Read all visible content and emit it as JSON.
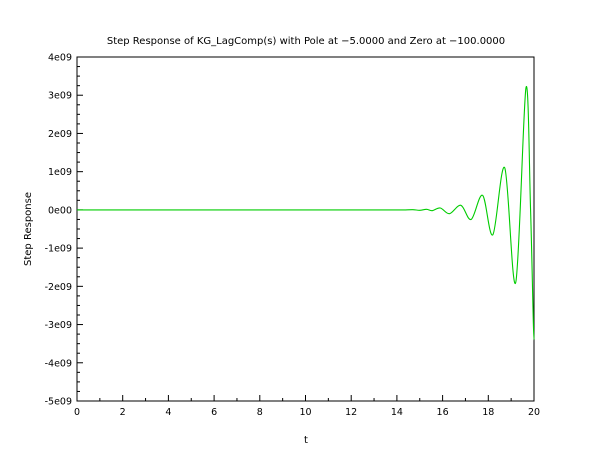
{
  "chart_data": {
    "type": "line",
    "title": "Step Response of KG_LagComp(s) with Pole at −5.0000 and Zero at −100.0000",
    "xlabel": "t",
    "ylabel": "Step Response",
    "xlim": [
      0,
      20
    ],
    "ylim": [
      -5000000000.0,
      4000000000.0
    ],
    "x_ticks": [
      "0",
      "2",
      "4",
      "6",
      "8",
      "10",
      "12",
      "14",
      "16",
      "18",
      "20"
    ],
    "y_ticks": [
      "-5e09",
      "-4e09",
      "-3e09",
      "-2e09",
      "-1e09",
      "0e00",
      "1e09",
      "2e09",
      "3e09",
      "4e09"
    ],
    "grid": false,
    "series": [
      {
        "color": "#00cc00",
        "x": [
          0,
          13.8,
          14.3,
          14.7,
          15.0,
          15.3,
          15.55,
          15.9,
          16.3,
          16.8,
          17.25,
          17.75,
          18.2,
          18.72,
          19.2,
          19.65,
          19.85,
          20.0
        ],
        "y": [
          0,
          0,
          0,
          5000000.0,
          -10000000.0,
          15000000.0,
          -20000000.0,
          50000000.0,
          -100000000.0,
          120000000.0,
          -250000000.0,
          380000000.0,
          -650000000.0,
          1100000000.0,
          -1900000000.0,
          3200000000.0,
          0.0,
          -3400000000.0
        ]
      }
    ]
  }
}
